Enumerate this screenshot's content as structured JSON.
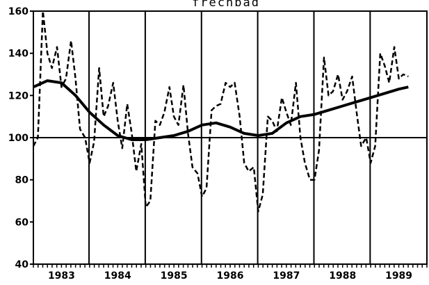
{
  "chart_data": {
    "type": "line",
    "title": "frechbad",
    "xlabel": "",
    "ylabel": "",
    "ylim": [
      40,
      160
    ],
    "yticks": [
      40,
      60,
      80,
      100,
      120,
      140,
      160
    ],
    "xlim": [
      1983.0,
      1990.0
    ],
    "year_labels": [
      "1983",
      "1984",
      "1985",
      "1986",
      "1987",
      "1988",
      "1989"
    ],
    "reference_line": 100,
    "grid": "vertical year separators",
    "legend": "none",
    "series": [
      {
        "style": "dashed",
        "color": "#000000",
        "x": [
          1983.0,
          1983.08,
          1983.17,
          1983.25,
          1983.33,
          1983.42,
          1983.5,
          1983.58,
          1983.67,
          1983.75,
          1983.83,
          1983.92,
          1984.0,
          1984.08,
          1984.17,
          1984.25,
          1984.33,
          1984.42,
          1984.5,
          1984.58,
          1984.67,
          1984.75,
          1984.83,
          1984.92,
          1985.0,
          1985.08,
          1985.17,
          1985.25,
          1985.33,
          1985.42,
          1985.5,
          1985.58,
          1985.67,
          1985.75,
          1985.83,
          1985.92,
          1986.0,
          1986.08,
          1986.17,
          1986.25,
          1986.33,
          1986.42,
          1986.5,
          1986.58,
          1986.67,
          1986.75,
          1986.83,
          1986.92,
          1987.0,
          1987.08,
          1987.17,
          1987.25,
          1987.33,
          1987.42,
          1987.5,
          1987.58,
          1987.67,
          1987.75,
          1987.83,
          1987.92,
          1988.0,
          1988.08,
          1988.17,
          1988.25,
          1988.33,
          1988.42,
          1988.5,
          1988.58,
          1988.67,
          1988.75,
          1988.83,
          1988.92,
          1989.0,
          1989.08,
          1989.17,
          1989.25,
          1989.33,
          1989.42,
          1989.5,
          1989.58,
          1989.67
        ],
        "y": [
          96,
          100,
          160,
          140,
          133,
          143,
          124,
          128,
          146,
          128,
          104,
          100,
          88,
          98,
          133,
          110,
          115,
          126,
          108,
          95,
          116,
          102,
          84,
          97,
          67,
          70,
          108,
          106,
          112,
          124,
          110,
          106,
          125,
          102,
          86,
          83,
          72,
          76,
          113,
          115,
          116,
          126,
          124,
          126,
          110,
          88,
          84,
          86,
          65,
          73,
          110,
          108,
          103,
          119,
          112,
          106,
          126,
          100,
          88,
          80,
          80,
          94,
          138,
          120,
          122,
          130,
          118,
          122,
          129,
          112,
          96,
          100,
          88,
          96,
          140,
          134,
          126,
          143,
          128,
          130,
          129
        ]
      },
      {
        "style": "solid",
        "color": "#000000",
        "x": [
          1983.0,
          1983.25,
          1983.5,
          1983.75,
          1984.0,
          1984.25,
          1984.5,
          1984.75,
          1985.0,
          1985.25,
          1985.5,
          1985.75,
          1986.0,
          1986.25,
          1986.5,
          1986.75,
          1987.0,
          1987.25,
          1987.5,
          1987.75,
          1988.0,
          1988.25,
          1988.5,
          1988.75,
          1989.0,
          1989.25,
          1989.5,
          1989.67
        ],
        "y": [
          124,
          127,
          126,
          120,
          112,
          106,
          101,
          99,
          99,
          100,
          101,
          103,
          106,
          107,
          105,
          102,
          101,
          102,
          107,
          110,
          111,
          113,
          115,
          117,
          119,
          121,
          123,
          124
        ]
      }
    ]
  }
}
